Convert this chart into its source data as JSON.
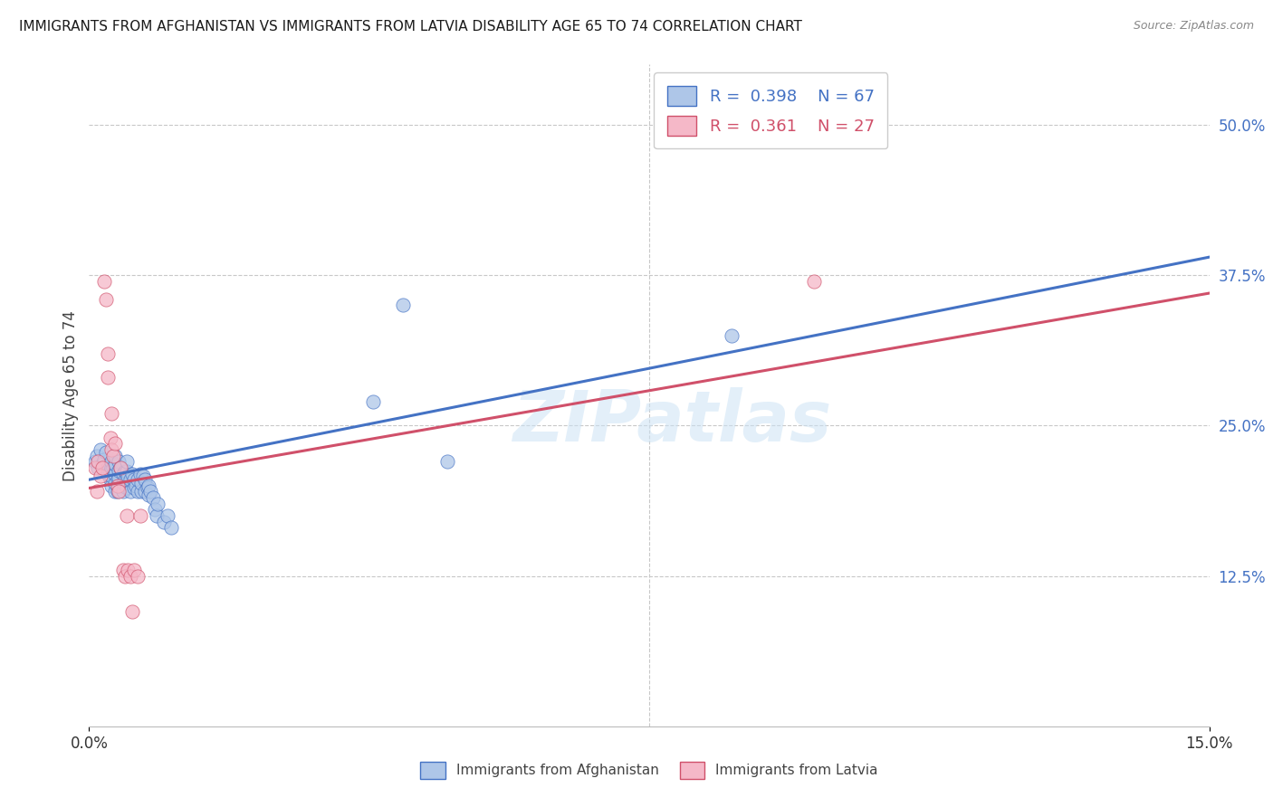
{
  "title": "IMMIGRANTS FROM AFGHANISTAN VS IMMIGRANTS FROM LATVIA DISABILITY AGE 65 TO 74 CORRELATION CHART",
  "source": "Source: ZipAtlas.com",
  "ylabel": "Disability Age 65 to 74",
  "xlim": [
    0.0,
    0.15
  ],
  "ylim": [
    0.0,
    0.55
  ],
  "y_ticks_right": [
    0.125,
    0.25,
    0.375,
    0.5
  ],
  "y_tick_labels_right": [
    "12.5%",
    "25.0%",
    "37.5%",
    "50.0%"
  ],
  "afghanistan_color": "#aec6e8",
  "latvia_color": "#f5b8c8",
  "line_afghanistan_color": "#4472c4",
  "line_latvia_color": "#d0506a",
  "scatter_afghanistan": [
    [
      0.0008,
      0.22
    ],
    [
      0.001,
      0.225
    ],
    [
      0.0012,
      0.215
    ],
    [
      0.0015,
      0.23
    ],
    [
      0.0018,
      0.218
    ],
    [
      0.002,
      0.222
    ],
    [
      0.0022,
      0.228
    ],
    [
      0.0025,
      0.21
    ],
    [
      0.0025,
      0.215
    ],
    [
      0.0028,
      0.205
    ],
    [
      0.0028,
      0.212
    ],
    [
      0.003,
      0.2
    ],
    [
      0.003,
      0.208
    ],
    [
      0.003,
      0.215
    ],
    [
      0.003,
      0.22
    ],
    [
      0.0032,
      0.215
    ],
    [
      0.0035,
      0.195
    ],
    [
      0.0035,
      0.202
    ],
    [
      0.0035,
      0.21
    ],
    [
      0.0035,
      0.218
    ],
    [
      0.0035,
      0.225
    ],
    [
      0.0038,
      0.195
    ],
    [
      0.0038,
      0.205
    ],
    [
      0.004,
      0.2
    ],
    [
      0.004,
      0.207
    ],
    [
      0.004,
      0.213
    ],
    [
      0.004,
      0.22
    ],
    [
      0.0042,
      0.215
    ],
    [
      0.0045,
      0.195
    ],
    [
      0.0045,
      0.202
    ],
    [
      0.0045,
      0.21
    ],
    [
      0.0048,
      0.205
    ],
    [
      0.0048,
      0.212
    ],
    [
      0.005,
      0.198
    ],
    [
      0.005,
      0.205
    ],
    [
      0.005,
      0.212
    ],
    [
      0.005,
      0.22
    ],
    [
      0.0052,
      0.208
    ],
    [
      0.0055,
      0.195
    ],
    [
      0.0055,
      0.205
    ],
    [
      0.0058,
      0.21
    ],
    [
      0.006,
      0.198
    ],
    [
      0.006,
      0.205
    ],
    [
      0.0062,
      0.2
    ],
    [
      0.0065,
      0.195
    ],
    [
      0.0065,
      0.205
    ],
    [
      0.0068,
      0.21
    ],
    [
      0.007,
      0.195
    ],
    [
      0.007,
      0.202
    ],
    [
      0.0072,
      0.208
    ],
    [
      0.0075,
      0.195
    ],
    [
      0.0075,
      0.205
    ],
    [
      0.0078,
      0.198
    ],
    [
      0.008,
      0.192
    ],
    [
      0.008,
      0.2
    ],
    [
      0.0082,
      0.195
    ],
    [
      0.0085,
      0.19
    ],
    [
      0.0088,
      0.18
    ],
    [
      0.009,
      0.175
    ],
    [
      0.0092,
      0.185
    ],
    [
      0.01,
      0.17
    ],
    [
      0.0105,
      0.175
    ],
    [
      0.011,
      0.165
    ],
    [
      0.038,
      0.27
    ],
    [
      0.042,
      0.35
    ],
    [
      0.048,
      0.22
    ],
    [
      0.086,
      0.325
    ],
    [
      0.096,
      0.505
    ]
  ],
  "scatter_latvia": [
    [
      0.0008,
      0.215
    ],
    [
      0.001,
      0.195
    ],
    [
      0.0012,
      0.22
    ],
    [
      0.0015,
      0.208
    ],
    [
      0.0018,
      0.215
    ],
    [
      0.002,
      0.37
    ],
    [
      0.0022,
      0.355
    ],
    [
      0.0025,
      0.31
    ],
    [
      0.0025,
      0.29
    ],
    [
      0.0028,
      0.24
    ],
    [
      0.003,
      0.26
    ],
    [
      0.003,
      0.23
    ],
    [
      0.0032,
      0.225
    ],
    [
      0.0035,
      0.235
    ],
    [
      0.0038,
      0.2
    ],
    [
      0.004,
      0.195
    ],
    [
      0.0042,
      0.215
    ],
    [
      0.0045,
      0.13
    ],
    [
      0.0048,
      0.125
    ],
    [
      0.005,
      0.175
    ],
    [
      0.0052,
      0.13
    ],
    [
      0.0055,
      0.125
    ],
    [
      0.0058,
      0.095
    ],
    [
      0.006,
      0.13
    ],
    [
      0.0065,
      0.125
    ],
    [
      0.0068,
      0.175
    ],
    [
      0.097,
      0.37
    ]
  ],
  "watermark": "ZIPatlas",
  "afghanistan_trend_x": [
    0.0,
    0.15
  ],
  "afghanistan_trend_y": [
    0.205,
    0.39
  ],
  "latvia_trend_x": [
    0.0,
    0.15
  ],
  "latvia_trend_y": [
    0.198,
    0.36
  ]
}
